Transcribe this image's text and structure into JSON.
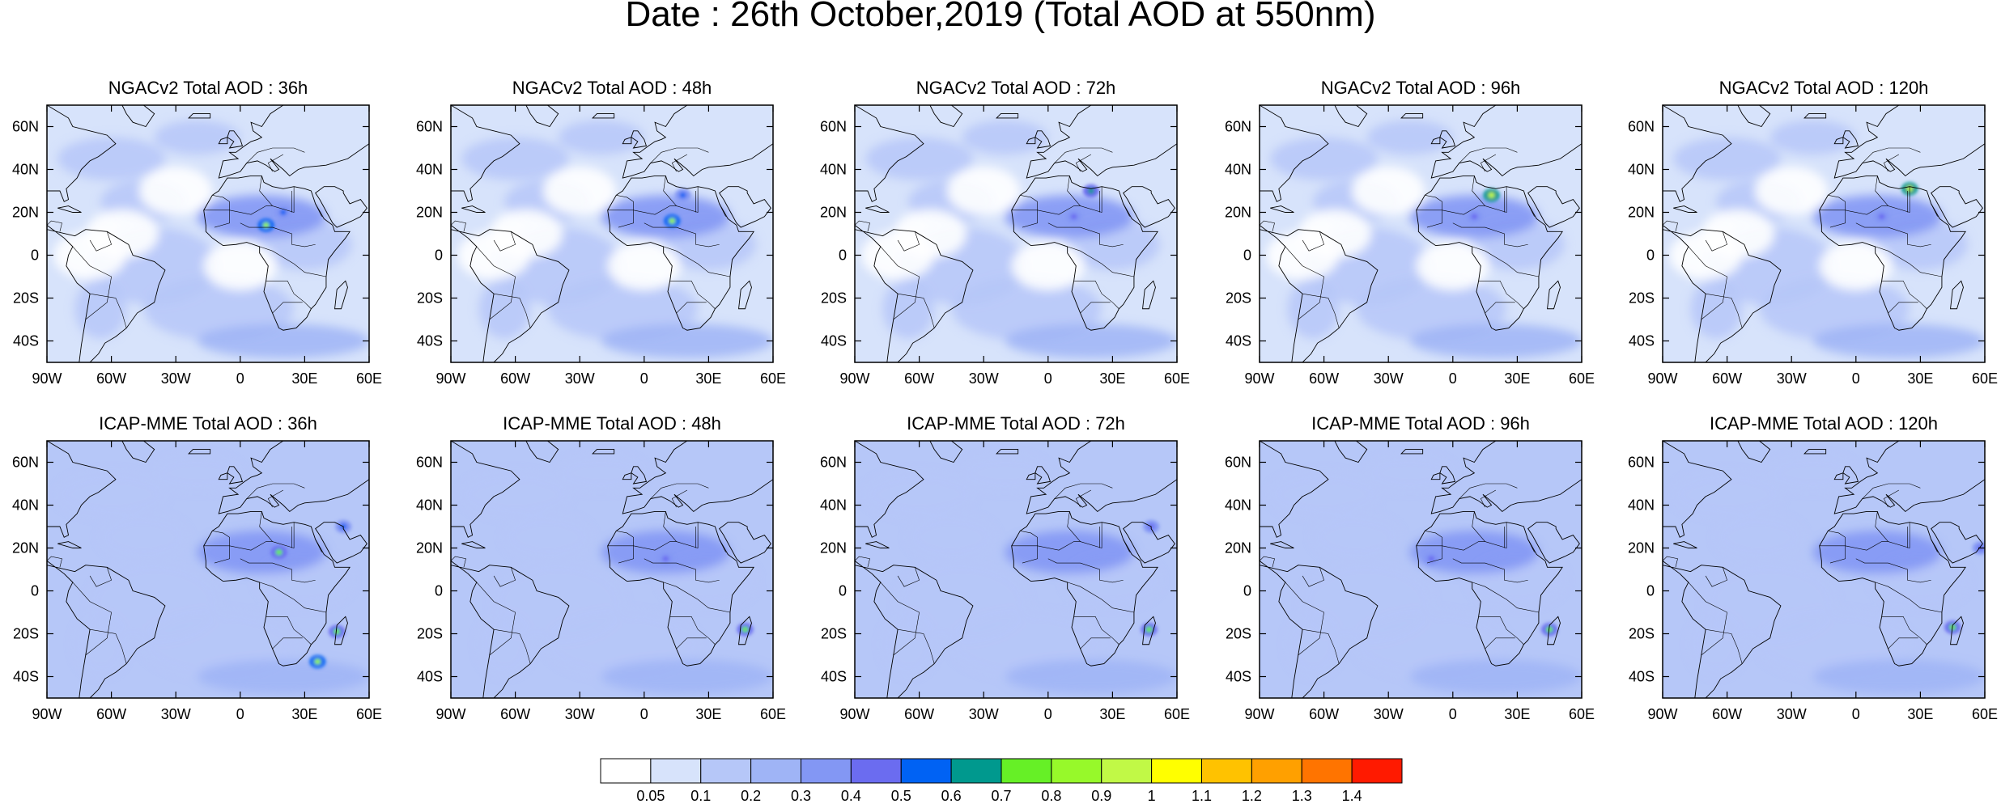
{
  "title": "Date : 26th October,2019 (Total AOD at 550nm)",
  "rows": [
    {
      "model": "NGACv2",
      "panels": [
        {
          "title": "NGACv2 Total AOD : 36h",
          "hotspots": [
            {
              "lon": 12,
              "lat": 14,
              "aod": 0.8
            },
            {
              "lon": 20,
              "lat": 20,
              "aod": 0.5
            }
          ]
        },
        {
          "title": "NGACv2 Total AOD : 48h",
          "hotspots": [
            {
              "lon": 13,
              "lat": 16,
              "aod": 0.8
            },
            {
              "lon": 18,
              "lat": 28,
              "aod": 0.5
            }
          ]
        },
        {
          "title": "NGACv2 Total AOD : 72h",
          "hotspots": [
            {
              "lon": 20,
              "lat": 30,
              "aod": 0.6
            },
            {
              "lon": 12,
              "lat": 18,
              "aod": 0.45
            }
          ]
        },
        {
          "title": "NGACv2 Total AOD : 96h",
          "hotspots": [
            {
              "lon": 18,
              "lat": 28,
              "aod": 0.9
            },
            {
              "lon": 10,
              "lat": 18,
              "aod": 0.45
            }
          ]
        },
        {
          "title": "NGACv2 Total AOD : 120h",
          "hotspots": [
            {
              "lon": 25,
              "lat": 31,
              "aod": 0.9
            },
            {
              "lon": 12,
              "lat": 18,
              "aod": 0.45
            }
          ]
        }
      ]
    },
    {
      "model": "ICAP-MME",
      "panels": [
        {
          "title": "ICAP-MME Total AOD : 36h",
          "hotspots": [
            {
              "lon": 18,
              "lat": 18,
              "aod": 0.7
            },
            {
              "lon": 45,
              "lat": -19,
              "aod": 0.7
            },
            {
              "lon": 36,
              "lat": -33,
              "aod": 0.8
            },
            {
              "lon": 48,
              "lat": 30,
              "aod": 0.5
            }
          ]
        },
        {
          "title": "ICAP-MME Total AOD : 48h",
          "hotspots": [
            {
              "lon": 47,
              "lat": -18,
              "aod": 0.7
            },
            {
              "lon": 10,
              "lat": 15,
              "aod": 0.45
            }
          ]
        },
        {
          "title": "ICAP-MME Total AOD : 72h",
          "hotspots": [
            {
              "lon": 47,
              "lat": -18,
              "aod": 0.7
            },
            {
              "lon": 48,
              "lat": 30,
              "aod": 0.45
            }
          ]
        },
        {
          "title": "ICAP-MME Total AOD : 96h",
          "hotspots": [
            {
              "lon": 45,
              "lat": -18,
              "aod": 0.7
            },
            {
              "lon": -10,
              "lat": 15,
              "aod": 0.45
            }
          ]
        },
        {
          "title": "ICAP-MME Total AOD : 120h",
          "hotspots": [
            {
              "lon": 45,
              "lat": -17,
              "aod": 0.7
            },
            {
              "lon": 58,
              "lat": 20,
              "aod": 0.45
            }
          ]
        }
      ]
    }
  ],
  "map_extent": {
    "lon_min": -90,
    "lon_max": 60,
    "lat_min": -50,
    "lat_max": 70
  },
  "lon_ticks": [
    {
      "value": -90,
      "label": "90W"
    },
    {
      "value": -60,
      "label": "60W"
    },
    {
      "value": -30,
      "label": "30W"
    },
    {
      "value": 0,
      "label": "0"
    },
    {
      "value": 30,
      "label": "30E"
    },
    {
      "value": 60,
      "label": "60E"
    }
  ],
  "lat_ticks": [
    {
      "value": 60,
      "label": "60N"
    },
    {
      "value": 40,
      "label": "40N"
    },
    {
      "value": 20,
      "label": "20N"
    },
    {
      "value": 0,
      "label": "0"
    },
    {
      "value": -20,
      "label": "20S"
    },
    {
      "value": -40,
      "label": "40S"
    }
  ],
  "colorbar": {
    "colors": [
      "#ffffff",
      "#d7e3fb",
      "#b6c7f8",
      "#9fb4f6",
      "#8397f4",
      "#6b6cf0",
      "#0062f4",
      "#00998e",
      "#66f026",
      "#97f92a",
      "#c1f946",
      "#ffff00",
      "#ffc200",
      "#ffa000",
      "#ff7400",
      "#ff1a00"
    ],
    "labels": [
      "0.05",
      "0.1",
      "0.2",
      "0.3",
      "0.4",
      "0.5",
      "0.6",
      "0.7",
      "0.8",
      "0.9",
      "1",
      "1.1",
      "1.2",
      "1.3",
      "1.4"
    ]
  }
}
